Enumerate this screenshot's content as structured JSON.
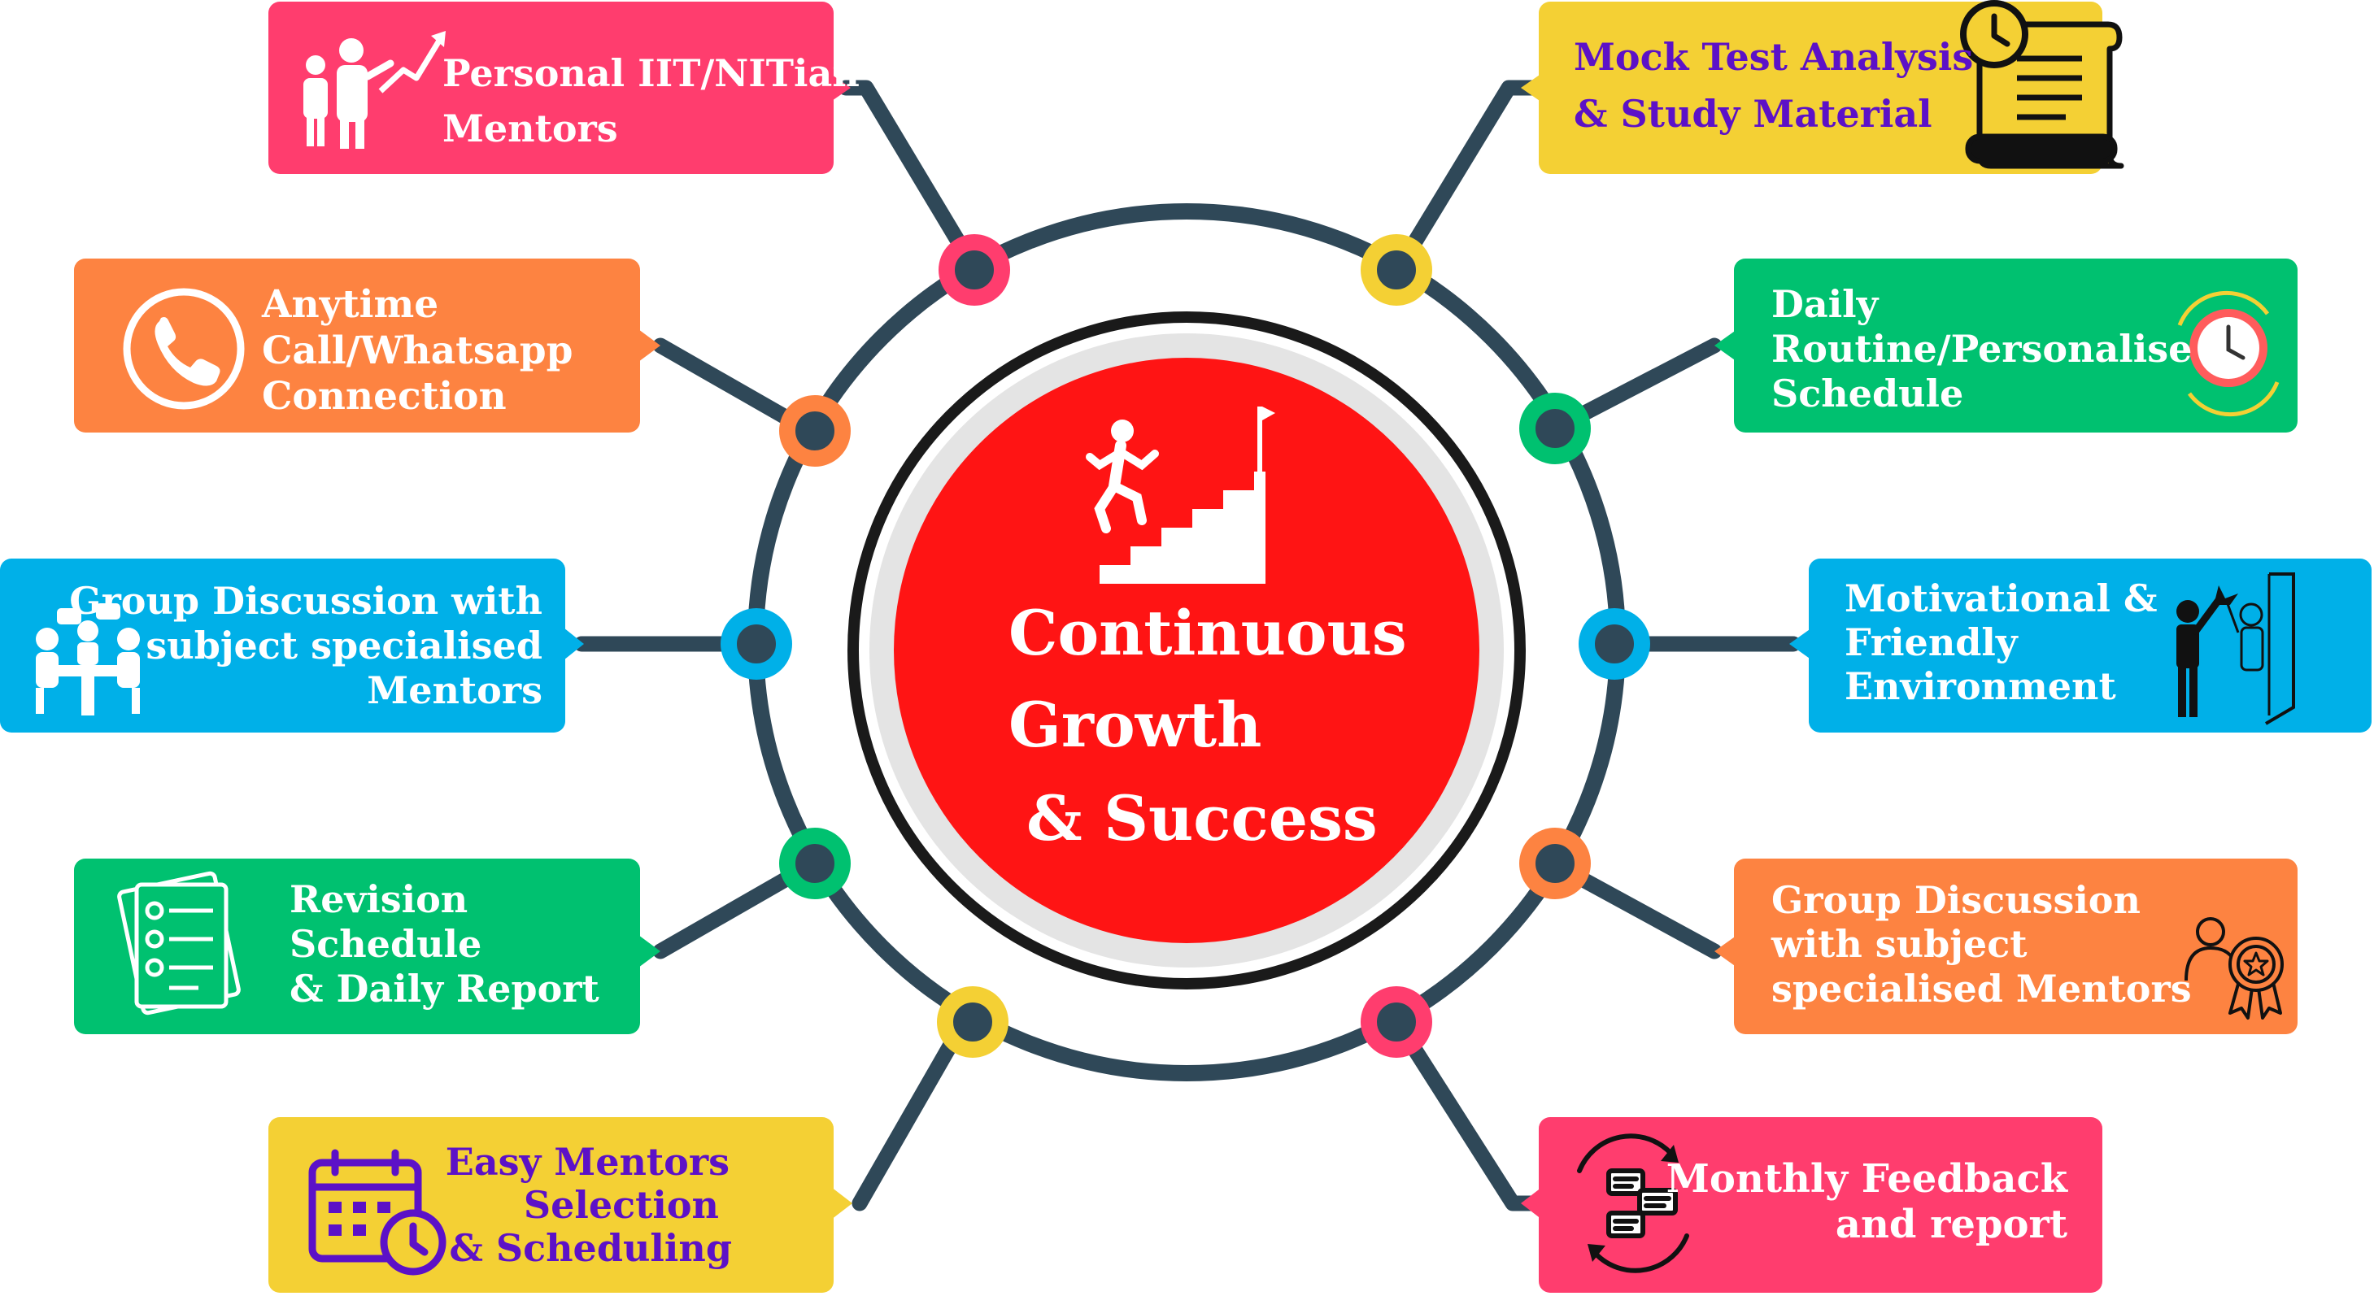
{
  "center": {
    "lines": [
      "Continuous",
      "Growth",
      "& Success"
    ],
    "fill_color": "#ff1414",
    "icon": "climbing-stairs-to-flag-icon"
  },
  "colors": {
    "pink": "#ff3d6e",
    "orange": "#fd8341",
    "blue": "#00b0e8",
    "green": "#00c170",
    "yellow": "#f4d034",
    "connector": "#2f4858",
    "purple_text": "#5c11c7",
    "white_text": "#ffffff"
  },
  "cards": [
    {
      "id": "personal-mentors",
      "lines": [
        "Personal IIT/NITian",
        "Mentors"
      ],
      "color": "pink",
      "text_color": "white",
      "icon": "mentor-pointing-growth-icon"
    },
    {
      "id": "anytime-call",
      "lines": [
        "Anytime",
        "Call/Whatsapp",
        "Connection"
      ],
      "color": "orange",
      "text_color": "white",
      "icon": "phone-icon"
    },
    {
      "id": "group-discussion-left",
      "lines": [
        "Group Discussion with",
        "subject specialised",
        "Mentors"
      ],
      "color": "blue",
      "text_color": "white",
      "icon": "meeting-table-icon"
    },
    {
      "id": "revision-schedule",
      "lines": [
        "Revision",
        "Schedule",
        "& Daily Report"
      ],
      "color": "green",
      "text_color": "white",
      "icon": "checklist-icon"
    },
    {
      "id": "easy-mentors",
      "lines": [
        "Easy Mentors",
        "Selection",
        "& Scheduling"
      ],
      "color": "yellow",
      "text_color": "purple",
      "icon": "calendar-clock-icon"
    },
    {
      "id": "mock-test",
      "lines": [
        "Mock Test Analysis",
        "& Study Material"
      ],
      "color": "yellow",
      "text_color": "purple",
      "icon": "scroll-clock-icon"
    },
    {
      "id": "daily-routine",
      "lines": [
        "Daily",
        "Routine/Personalise",
        "Schedule"
      ],
      "color": "green",
      "text_color": "white",
      "icon": "alarm-clock-icon"
    },
    {
      "id": "motivational",
      "lines": [
        "Motivational &",
        "Friendly",
        "Environment"
      ],
      "color": "blue",
      "text_color": "white",
      "icon": "high-five-mirror-icon"
    },
    {
      "id": "group-discussion-right",
      "lines": [
        "Group Discussion",
        "with subject",
        "specialised Mentors"
      ],
      "color": "orange",
      "text_color": "white",
      "icon": "award-person-icon"
    },
    {
      "id": "monthly-feedback",
      "lines": [
        "Monthly Feedback",
        "and report"
      ],
      "color": "pink",
      "text_color": "white",
      "icon": "feedback-chat-cycle-icon"
    }
  ]
}
